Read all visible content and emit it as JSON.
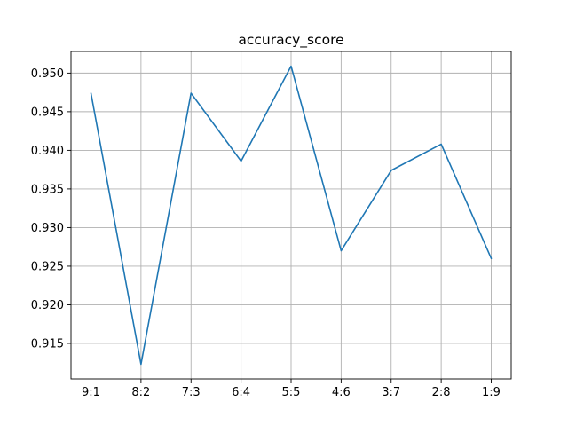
{
  "chart_data": {
    "type": "line",
    "title": "accuracy_score",
    "xlabel": "",
    "ylabel": "",
    "categories": [
      "9:1",
      "8:2",
      "7:3",
      "6:4",
      "5:5",
      "4:6",
      "3:7",
      "2:8",
      "1:9"
    ],
    "series": [
      {
        "values": [
          0.9474,
          0.9123,
          0.9474,
          0.9386,
          0.9509,
          0.927,
          0.9374,
          0.9408,
          0.926
        ],
        "color": "#1f77b4"
      }
    ],
    "yticks": [
      "0.915",
      "0.920",
      "0.925",
      "0.930",
      "0.935",
      "0.940",
      "0.945",
      "0.950"
    ],
    "ylim": [
      0.9104,
      0.9528
    ],
    "grid": true,
    "legend": "none"
  }
}
